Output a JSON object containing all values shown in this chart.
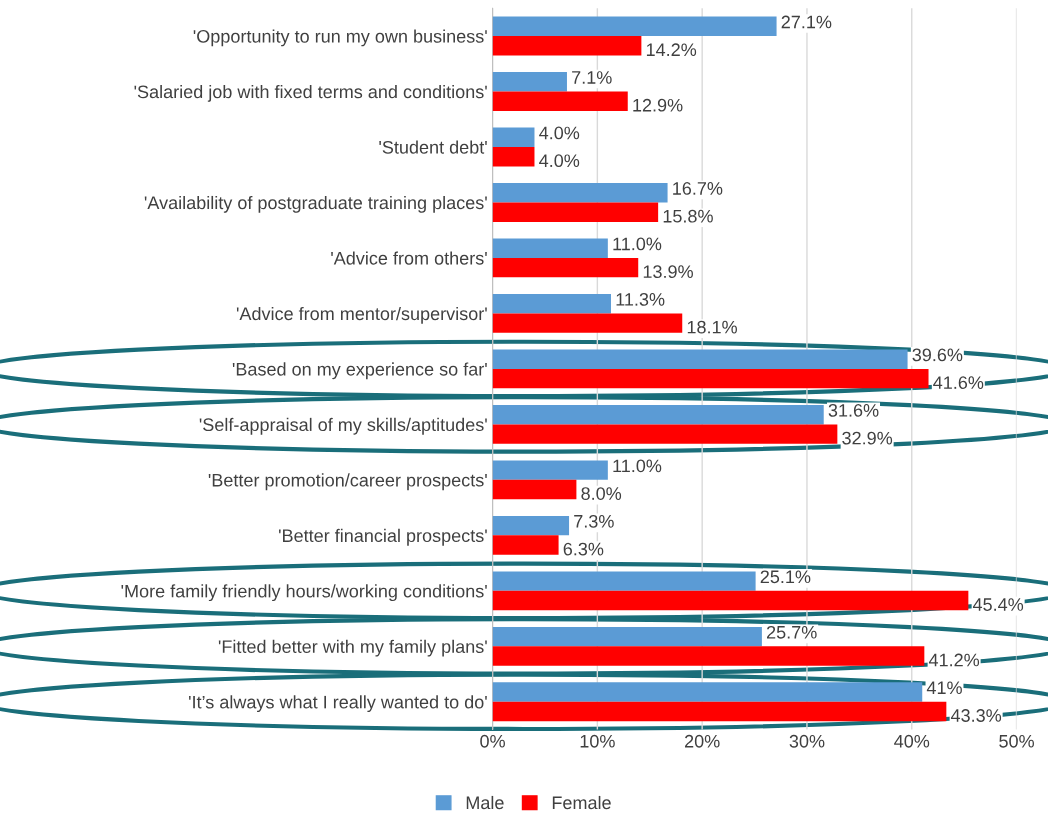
{
  "chart_data": {
    "type": "bar",
    "orientation": "horizontal",
    "categories": [
      "'Opportunity to run my own business'",
      "'Salaried job with fixed terms and conditions'",
      "'Student debt'",
      "'Availability of postgraduate training places'",
      "'Advice from others'",
      "'Advice from mentor/supervisor'",
      "'Based on my experience so far'",
      "'Self-appraisal of my skills/aptitudes'",
      "'Better promotion/career prospects'",
      "'Better financial prospects'",
      "'More family friendly hours/working conditions'",
      "'Fitted better with my family plans'",
      "'It’s always what I really wanted to do'"
    ],
    "series": [
      {
        "name": "Male",
        "color": "#5b9bd5",
        "values": [
          27.1,
          7.1,
          4.0,
          16.7,
          11.0,
          11.3,
          39.6,
          31.6,
          11.0,
          7.3,
          25.1,
          25.7,
          41
        ],
        "value_labels": [
          "27.1%",
          "7.1%",
          "4.0%",
          "16.7%",
          "11.0%",
          "11.3%",
          "39.6%",
          "31.6%",
          "11.0%",
          "7.3%",
          "25.1%",
          "25.7%",
          "41%"
        ]
      },
      {
        "name": "Female",
        "color": "#ff0000",
        "values": [
          14.2,
          12.9,
          4.0,
          15.8,
          13.9,
          18.1,
          41.6,
          32.9,
          8.0,
          6.3,
          45.4,
          41.2,
          43.3
        ],
        "value_labels": [
          "14.2%",
          "12.9%",
          "4.0%",
          "15.8%",
          "13.9%",
          "18.1%",
          "41.6%",
          "32.9%",
          "8.0%",
          "6.3%",
          "45.4%",
          "41.2%",
          "43.3%"
        ]
      }
    ],
    "xlim": [
      0,
      50
    ],
    "xticks": [
      {
        "value": 0,
        "label": "0%"
      },
      {
        "value": 10,
        "label": "10%"
      },
      {
        "value": 20,
        "label": "20%"
      },
      {
        "value": 30,
        "label": "30%"
      },
      {
        "value": 40,
        "label": "40%"
      },
      {
        "value": 50,
        "label": "50%"
      }
    ],
    "grid": "x",
    "legend": "bottom"
  }
}
